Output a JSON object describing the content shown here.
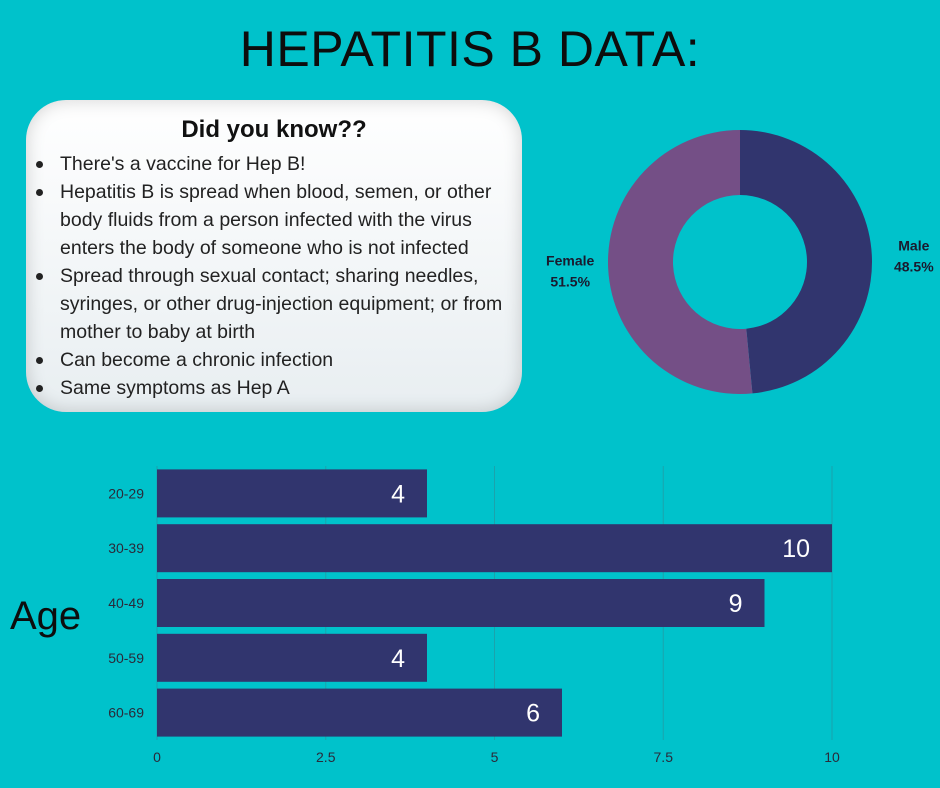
{
  "page_title": "HEPATITIS B DATA:",
  "info_card": {
    "heading": "Did you know??",
    "facts": [
      "There's a vaccine for Hep B!",
      "Hepatitis B is spread when blood, semen, or other body fluids from a person infected with the virus enters the body of someone who is not infected",
      "Spread through sexual contact; sharing needles, syringes, or other drug-injection equipment; or from mother to baby at birth",
      "Can become a chronic infection",
      "Same symptoms as Hep A"
    ]
  },
  "colors": {
    "background": "#00c2cb",
    "male": "#31356e",
    "female": "#744f86",
    "bar": "#31356e"
  },
  "chart_data": [
    {
      "type": "pie",
      "donut": true,
      "slices": [
        {
          "label": "Male",
          "value": 48.5,
          "value_label": "48.5%"
        },
        {
          "label": "Female",
          "value": 51.5,
          "value_label": "51.5%"
        }
      ]
    },
    {
      "type": "bar",
      "orientation": "horizontal",
      "categories": [
        "20-29",
        "30-39",
        "40-49",
        "50-59",
        "60-69"
      ],
      "values": [
        4,
        10,
        9,
        4,
        6
      ],
      "ylabel": "Age",
      "xlim": [
        0,
        10
      ],
      "xticks": [
        "0",
        "2.5",
        "5",
        "7.5",
        "10"
      ],
      "grid": true
    }
  ]
}
